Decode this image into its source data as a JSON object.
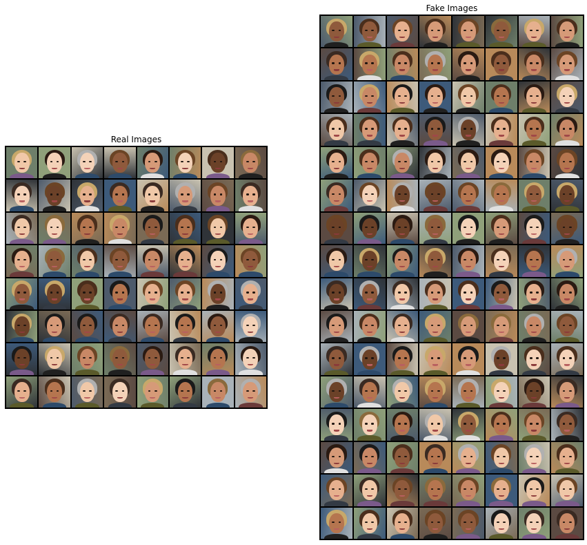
{
  "panels": {
    "real": {
      "title": "Real Images",
      "rows": 8,
      "cols": 8
    },
    "fake": {
      "title": "Fake Images",
      "rows": 16,
      "cols": 8
    }
  },
  "palette": {
    "frame": "#000000",
    "skin": [
      "#f0c8a8",
      "#e6b08e",
      "#d69a78",
      "#c88866",
      "#b5754f",
      "#8f5a3c",
      "#6b4128",
      "#f4d2b8"
    ],
    "hair": [
      "#2a1a12",
      "#4a2e1c",
      "#6b4425",
      "#1a1a1a",
      "#8a6a3c",
      "#c8a86a",
      "#3a2a22",
      "#b0b0b0"
    ],
    "background": [
      "#6e7f6a",
      "#4d5a6b",
      "#a9b2b8",
      "#7a6a55",
      "#2f3338",
      "#8fa07a",
      "#c9c2b0",
      "#5b4a42",
      "#3d5a7a",
      "#b88a5a"
    ],
    "mouth": [
      "#a04848",
      "#8a3a3a",
      "#b86060"
    ],
    "shirt": [
      "#333a44",
      "#6a3a3a",
      "#2d4a6a",
      "#e0e0e0",
      "#5a5a2a",
      "#202020",
      "#7a5a8a"
    ]
  }
}
